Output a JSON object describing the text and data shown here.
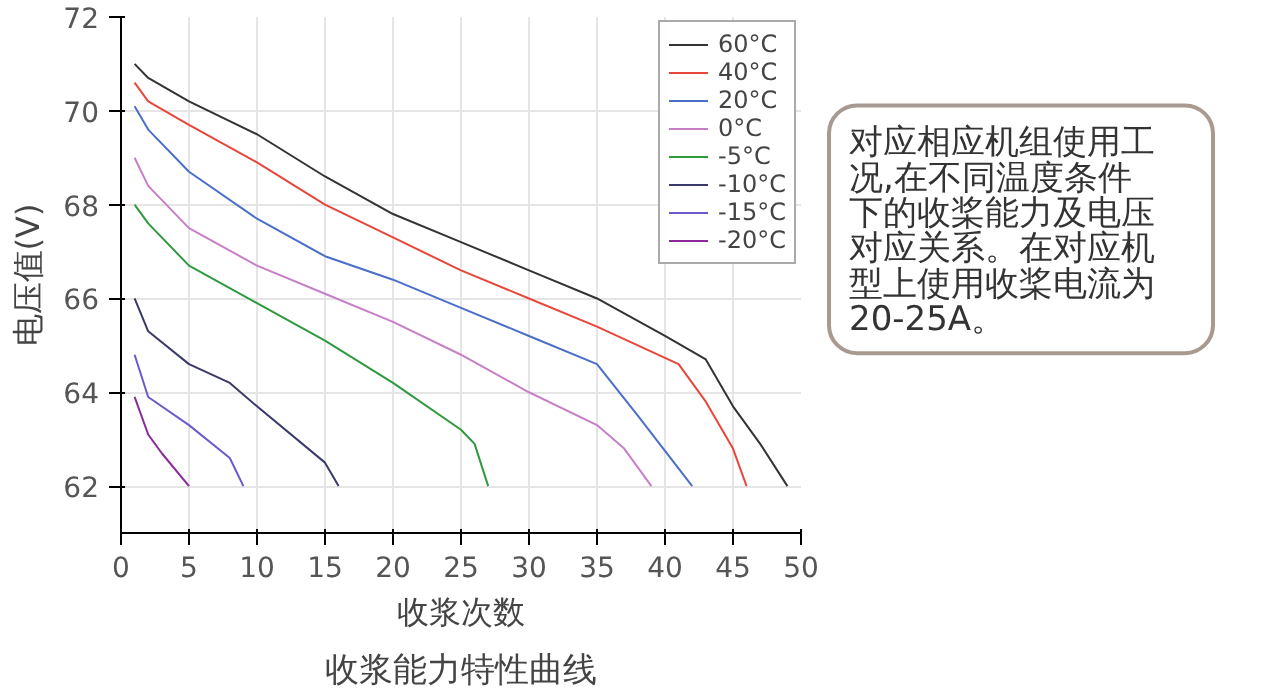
{
  "chart_data": {
    "type": "line",
    "title": "收浆能力特性曲线",
    "xlabel": "收浆次数",
    "ylabel": "电压值(V)",
    "xlim": [
      0,
      50
    ],
    "ylim": [
      61,
      72
    ],
    "xticks": [
      0,
      5,
      10,
      15,
      20,
      25,
      30,
      35,
      40,
      45,
      50
    ],
    "yticks": [
      62,
      64,
      66,
      68,
      70,
      72
    ],
    "grid": true,
    "legend": "top right",
    "marker": "none",
    "line_style": "solid",
    "annotations": [
      "对应相应机组使用工况,在不同温度条件下的收桨能力及电压对应关系。在对应机型上使用收桨电流为20-25A。"
    ],
    "series": [
      {
        "name": "60°C",
        "color": "#333333",
        "x": [
          1,
          2,
          5,
          10,
          15,
          20,
          25,
          30,
          35,
          40,
          43,
          45,
          47,
          49
        ],
        "values": [
          71.0,
          70.7,
          70.2,
          69.5,
          68.6,
          67.8,
          67.2,
          66.6,
          66.0,
          65.2,
          64.7,
          63.7,
          62.9,
          62.0
        ]
      },
      {
        "name": "40°C",
        "color": "#e8463a",
        "x": [
          1,
          2,
          5,
          10,
          15,
          20,
          25,
          30,
          35,
          41,
          43,
          45,
          46
        ],
        "values": [
          70.6,
          70.2,
          69.7,
          68.9,
          68.0,
          67.3,
          66.6,
          66.0,
          65.4,
          64.6,
          63.8,
          62.8,
          62.0
        ]
      },
      {
        "name": "20°C",
        "color": "#4a6fc9",
        "x": [
          1,
          2,
          5,
          10,
          15,
          20,
          25,
          30,
          35,
          38,
          42
        ],
        "values": [
          70.1,
          69.6,
          68.7,
          67.7,
          66.9,
          66.4,
          65.8,
          65.2,
          64.6,
          63.5,
          62.0
        ]
      },
      {
        "name": "0°C",
        "color": "#c77fc7",
        "x": [
          1,
          2,
          5,
          10,
          15,
          20,
          25,
          30,
          35,
          37,
          39
        ],
        "values": [
          69.0,
          68.4,
          67.5,
          66.7,
          66.1,
          65.5,
          64.8,
          64.0,
          63.3,
          62.8,
          62.0
        ]
      },
      {
        "name": "-5°C",
        "color": "#2e9a3e",
        "x": [
          1,
          2,
          5,
          10,
          15,
          20,
          25,
          26,
          27
        ],
        "values": [
          68.0,
          67.6,
          66.7,
          65.9,
          65.1,
          64.2,
          63.2,
          62.9,
          62.0
        ]
      },
      {
        "name": "-10°C",
        "color": "#3a3a6a",
        "x": [
          1,
          2,
          5,
          8,
          10,
          15,
          16
        ],
        "values": [
          66.0,
          65.3,
          64.6,
          64.2,
          63.7,
          62.5,
          62.0
        ]
      },
      {
        "name": "-15°C",
        "color": "#6a5acd",
        "x": [
          1,
          2,
          5,
          8,
          9
        ],
        "values": [
          64.8,
          63.9,
          63.3,
          62.6,
          62.0
        ]
      },
      {
        "name": "-20°C",
        "color": "#8a2a9a",
        "x": [
          1,
          2,
          3,
          5
        ],
        "values": [
          63.9,
          63.1,
          62.7,
          62.0
        ]
      }
    ]
  }
}
